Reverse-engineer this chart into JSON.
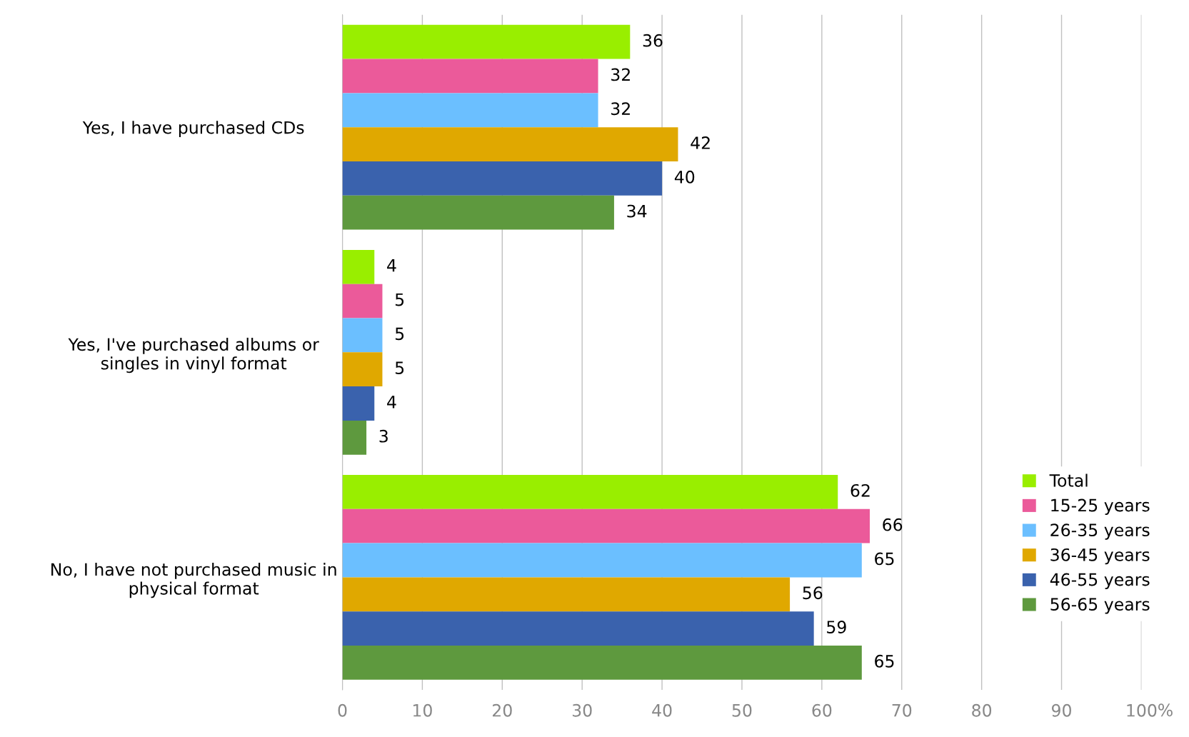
{
  "chart_data": {
    "type": "bar",
    "orientation": "horizontal",
    "categories": [
      "Yes, I have purchased CDs",
      "Yes, I've purchased albums or\nsingles in vinyl format",
      "No, I have not purchased music in\nphysical format"
    ],
    "series": [
      {
        "name": "Total",
        "color": "#99ee00",
        "values": [
          36,
          4,
          62
        ]
      },
      {
        "name": "15-25 years",
        "color": "#eb5a9a",
        "values": [
          32,
          5,
          66
        ]
      },
      {
        "name": "26-35 years",
        "color": "#6bbfff",
        "values": [
          32,
          5,
          65
        ]
      },
      {
        "name": "36-45 years",
        "color": "#e0a800",
        "values": [
          42,
          5,
          56
        ]
      },
      {
        "name": "46-55 years",
        "color": "#3a62ad",
        "values": [
          40,
          4,
          59
        ]
      },
      {
        "name": "56-65 years",
        "color": "#5e993e",
        "values": [
          34,
          3,
          65
        ]
      }
    ],
    "xlabel": "%",
    "xlim": [
      0,
      100
    ],
    "xticks": [
      0,
      10,
      20,
      30,
      40,
      50,
      60,
      70,
      80,
      90,
      100
    ],
    "grid": "x",
    "legend": "bottom right",
    "data_labels": true
  }
}
